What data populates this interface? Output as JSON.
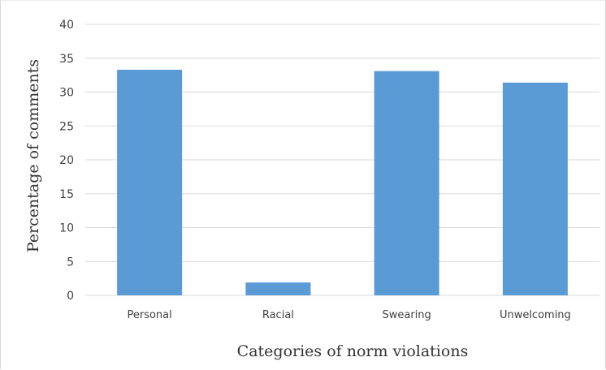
{
  "chart_data": {
    "type": "bar",
    "categories": [
      "Personal",
      "Racial",
      "Swearing",
      "Unwelcoming"
    ],
    "values": [
      33.3,
      1.9,
      33.1,
      31.4
    ],
    "xlabel": "Categories of norm violations",
    "ylabel": "Percentage of comments",
    "ylim": [
      0,
      40
    ],
    "yticks": [
      0,
      5,
      10,
      15,
      20,
      25,
      30,
      35,
      40
    ],
    "grid": true,
    "legend": "none",
    "bar_color": "#5b9bd5",
    "grid_color": "#d9d9d9"
  }
}
